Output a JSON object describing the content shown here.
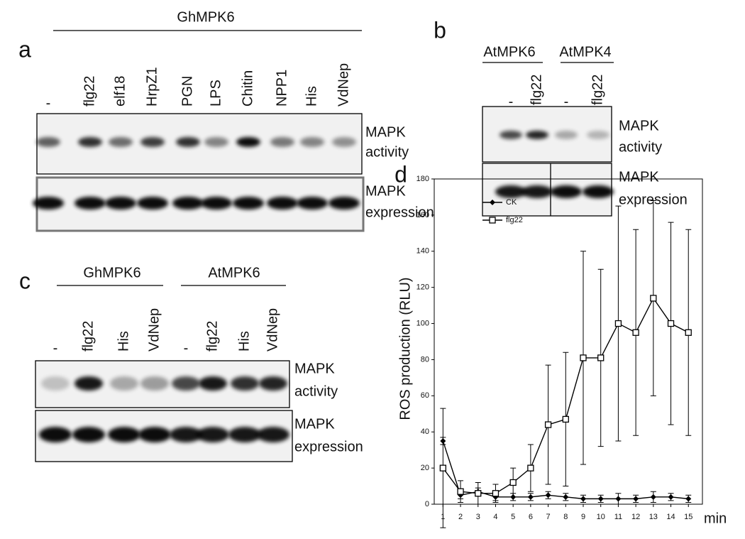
{
  "panels": [
    {
      "label": "a",
      "groups": [
        {
          "name": "GhMPK6",
          "lanes": [
            "-",
            "flg22",
            "elf18",
            "HrpZ1",
            "PGN",
            "LPS",
            "Chitin",
            "NPP1",
            "His",
            "VdNep"
          ]
        }
      ],
      "rows": [
        [
          "MAPK",
          "activity"
        ],
        [
          "MAPK",
          "expression"
        ]
      ]
    },
    {
      "label": "b",
      "groups": [
        {
          "name": "AtMPK6",
          "lanes": [
            "-",
            "flg22"
          ]
        },
        {
          "name": "AtMPK4",
          "lanes": [
            "-",
            "flg22"
          ]
        }
      ],
      "rows": [
        [
          "MAPK",
          "activity"
        ],
        [
          "MAPK",
          "expression"
        ]
      ]
    },
    {
      "label": "c",
      "groups": [
        {
          "name": "GhMPK6",
          "lanes": [
            "-",
            "flg22",
            "His",
            "VdNep"
          ]
        },
        {
          "name": "AtMPK6",
          "lanes": [
            "-",
            "flg22",
            "His",
            "VdNep"
          ]
        }
      ],
      "rows": [
        [
          "MAPK",
          "activity"
        ],
        [
          "MAPK",
          "expression"
        ]
      ]
    }
  ],
  "chart_data": {
    "type": "line",
    "label": "d",
    "y_label": "ROS production (RLU)",
    "x_label": "min",
    "x": [
      1,
      2,
      3,
      4,
      5,
      6,
      7,
      8,
      9,
      10,
      11,
      12,
      13,
      14,
      15
    ],
    "xlim": [
      0.5,
      15.8
    ],
    "xticks": [
      1,
      2,
      3,
      4,
      5,
      6,
      7,
      8,
      9,
      10,
      11,
      12,
      13,
      14,
      15
    ],
    "ylim": [
      0,
      180
    ],
    "yticks": [
      0,
      20,
      40,
      60,
      80,
      100,
      120,
      140,
      160,
      180
    ],
    "series": [
      {
        "name": "CK",
        "color": "#000000",
        "marker": "diamond",
        "values": [
          35,
          5,
          7,
          4,
          4,
          4,
          5,
          4,
          3,
          3,
          3,
          3,
          4,
          4,
          3
        ],
        "errors": [
          2,
          2,
          2,
          2,
          2,
          2,
          2,
          2,
          2,
          2,
          3,
          2,
          3,
          2,
          2
        ]
      },
      {
        "name": "flg22",
        "color": "#000000",
        "marker": "square",
        "values": [
          20,
          7,
          6,
          6,
          12,
          20,
          44,
          47,
          81,
          81,
          100,
          95,
          114,
          100,
          95
        ],
        "errors": [
          33,
          6,
          6,
          5,
          8,
          13,
          33,
          37,
          59,
          49,
          65,
          57,
          54,
          56,
          57
        ]
      }
    ]
  }
}
